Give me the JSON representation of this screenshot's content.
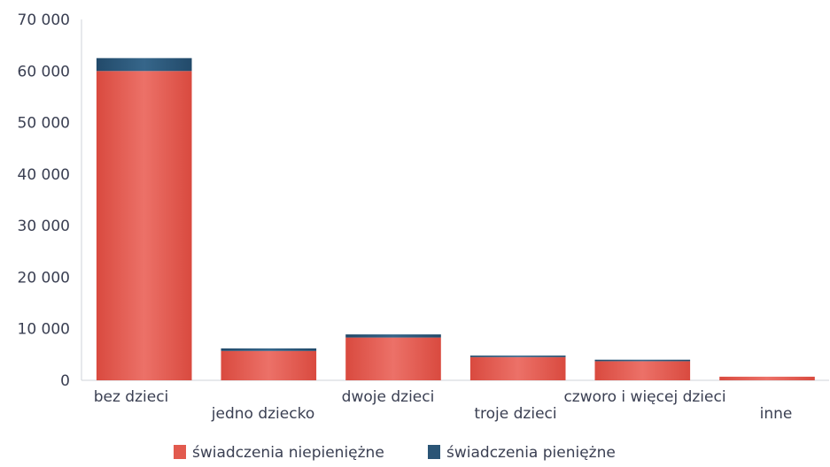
{
  "chart_data": {
    "type": "bar",
    "stacked": true,
    "categories": [
      "bez dzieci",
      "jedno dziecko",
      "dwoje dzieci",
      "troje dzieci",
      "czworo i więcej dzieci",
      "inne"
    ],
    "series": [
      {
        "name": "świadczenia niepieniężne",
        "color": "#e25a4e",
        "values": [
          60000,
          5700,
          8300,
          4500,
          3700,
          700
        ]
      },
      {
        "name": "świadczenia pieniężne",
        "color": "#2b5576",
        "values": [
          2500,
          500,
          600,
          300,
          300,
          0
        ]
      }
    ],
    "y_ticks": [
      "0",
      "10 000",
      "20 000",
      "30 000",
      "40 000",
      "50 000",
      "60 000",
      "70 000"
    ],
    "ylim": [
      0,
      70000
    ],
    "grid": false,
    "legend_position": "bottom"
  }
}
